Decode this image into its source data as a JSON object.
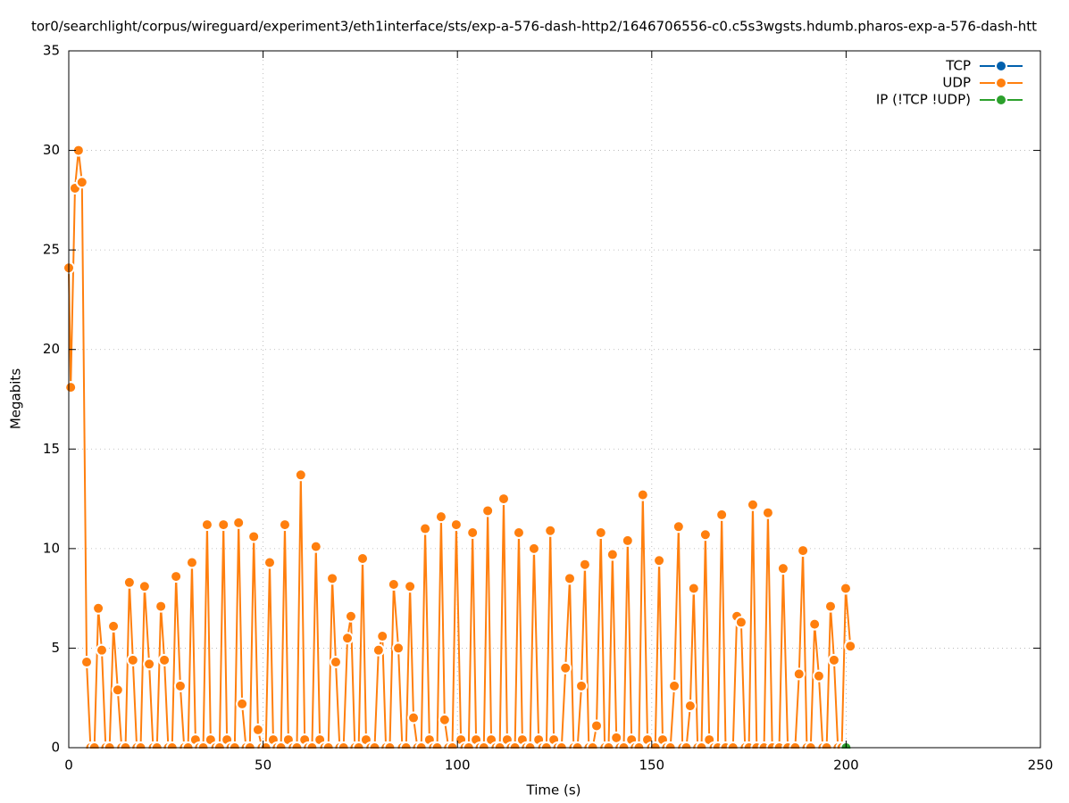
{
  "chart_data": {
    "type": "line",
    "title": "tor0/searchlight/corpus/wireguard/experiment3/eth1interface/sts/exp-a-576-dash-http2/1646706556-c0.c5s3wgsts.hdumb.pharos-exp-a-576-dash-htt",
    "xlabel": "Time (s)",
    "ylabel": "Megabits",
    "xlim": [
      0,
      250
    ],
    "xticks": [
      0,
      50,
      100,
      150,
      200,
      250
    ],
    "ylim": [
      0,
      35
    ],
    "yticks": [
      0,
      5,
      10,
      15,
      20,
      25,
      30,
      35
    ],
    "grid": true,
    "legend": "top-right",
    "series": [
      {
        "name": "TCP",
        "color": "#0060ad",
        "x": [],
        "values": []
      },
      {
        "name": "UDP",
        "color": "#ff7f0e",
        "x": [
          0,
          0.5,
          1.6,
          2.5,
          3.4,
          4.6,
          5.6,
          6.6,
          7.6,
          8.5,
          9.5,
          10.5,
          11.5,
          12.6,
          13.6,
          14.6,
          15.6,
          16.5,
          17.5,
          18.5,
          19.5,
          20.7,
          21.7,
          22.7,
          23.7,
          24.6,
          25.6,
          26.6,
          27.6,
          28.7,
          29.7,
          30.7,
          31.7,
          32.6,
          33.6,
          34.6,
          35.6,
          36.5,
          37.8,
          38.8,
          39.8,
          40.7,
          41.7,
          42.7,
          43.7,
          44.6,
          45.6,
          46.6,
          47.6,
          48.7,
          49.7,
          50.7,
          51.7,
          52.6,
          53.6,
          54.6,
          55.6,
          56.5,
          57.7,
          58.7,
          59.7,
          60.7,
          61.6,
          62.6,
          63.6,
          64.6,
          65.8,
          66.8,
          67.8,
          68.7,
          69.7,
          70.7,
          71.7,
          72.6,
          73.6,
          74.6,
          75.6,
          76.5,
          77.7,
          78.7,
          79.7,
          80.7,
          81.6,
          82.6,
          83.6,
          84.8,
          85.8,
          86.8,
          87.8,
          88.7,
          89.7,
          90.7,
          91.7,
          92.8,
          93.8,
          94.8,
          95.8,
          96.7,
          97.7,
          98.7,
          99.7,
          100.9,
          101.9,
          102.9,
          103.9,
          104.8,
          105.8,
          106.8,
          107.8,
          108.7,
          109.9,
          110.9,
          111.9,
          112.8,
          113.8,
          114.8,
          115.8,
          116.7,
          117.7,
          118.7,
          119.7,
          120.9,
          121.9,
          122.9,
          123.9,
          124.8,
          125.8,
          126.8,
          127.8,
          128.9,
          129.9,
          130.9,
          131.9,
          132.8,
          133.8,
          134.8,
          135.8,
          136.9,
          137.9,
          138.9,
          139.9,
          140.9,
          141.8,
          142.8,
          143.8,
          144.8,
          145.7,
          146.7,
          147.7,
          148.9,
          149.9,
          150.9,
          151.9,
          152.8,
          153.8,
          154.8,
          155.8,
          156.9,
          157.9,
          158.9,
          159.9,
          160.8,
          161.8,
          162.8,
          163.8,
          164.8,
          166,
          167,
          168,
          169,
          170.9,
          171.9,
          173,
          174,
          175,
          176,
          177,
          178.9,
          179.9,
          181,
          182.8,
          183.8,
          185,
          186.9,
          187.9,
          188.9,
          189.9,
          190.9,
          191.9,
          193,
          194,
          195,
          196,
          196.9,
          197.9,
          198.9,
          199.9,
          201.1
        ],
        "values": [
          24.1,
          18.1,
          28.1,
          30,
          28.4,
          4.3,
          0,
          0,
          7.0,
          4.9,
          0,
          0,
          6.1,
          2.9,
          0,
          0,
          8.3,
          4.4,
          0,
          0,
          8.1,
          4.2,
          0,
          0,
          7.1,
          4.4,
          0,
          0,
          8.6,
          3.1,
          0,
          0,
          9.3,
          0.4,
          0,
          0,
          11.2,
          0.4,
          0,
          0,
          11.2,
          0.4,
          0,
          0,
          11.3,
          2.2,
          0,
          0,
          10.6,
          0.9,
          0,
          0,
          9.3,
          0.4,
          0,
          0,
          11.2,
          0.4,
          0,
          0,
          13.7,
          0.4,
          0,
          0,
          10.1,
          0.4,
          0,
          0,
          8.5,
          4.3,
          0,
          0,
          5.5,
          6.6,
          0,
          0,
          9.5,
          0.4,
          0,
          0,
          4.9,
          5.6,
          0,
          0,
          8.2,
          5.0,
          0,
          0,
          8.1,
          1.5,
          0,
          0,
          11.0,
          0.4,
          0,
          0,
          11.6,
          1.4,
          0,
          0,
          11.2,
          0.4,
          0,
          0,
          10.8,
          0.4,
          0,
          0,
          11.9,
          0.4,
          0,
          0,
          12.5,
          0.4,
          0,
          0,
          10.8,
          0.4,
          0,
          0,
          10.0,
          0.4,
          0,
          0,
          10.9,
          0.4,
          0,
          0,
          4.0,
          8.5,
          0,
          0,
          3.1,
          9.2,
          0,
          0,
          1.1,
          10.8,
          0,
          0,
          9.7,
          0.5,
          0,
          0,
          10.4,
          0.4,
          0,
          0,
          12.7,
          0.4,
          0,
          0,
          9.4,
          0.4,
          0,
          0,
          3.1,
          11.1,
          0,
          0,
          2.1,
          8.0,
          0,
          0,
          10.7,
          0.4,
          0,
          0,
          11.7,
          0,
          0,
          6.6,
          6.3,
          0,
          0,
          12.2,
          0,
          0,
          11.8,
          0,
          0,
          9.0,
          0,
          0,
          3.7,
          9.9,
          0,
          0,
          6.2,
          3.6,
          0,
          0,
          7.1,
          4.4,
          0,
          0,
          8.0,
          5.1
        ]
      },
      {
        "name": "IP (!TCP  !UDP)",
        "color": "#2ca02c",
        "x": [
          200
        ],
        "values": [
          0
        ]
      }
    ]
  }
}
